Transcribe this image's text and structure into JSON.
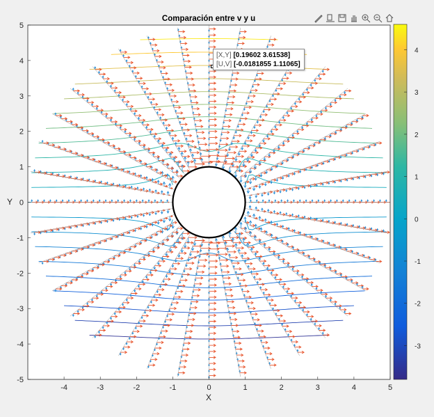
{
  "chart_data": {
    "type": "quiver",
    "title": "Comparación entre v y u",
    "xlabel": "X",
    "ylabel": "Y",
    "xlim": [
      -5,
      5
    ],
    "ylim": [
      -5,
      5
    ],
    "xticks": [
      -4,
      -3,
      -2,
      -1,
      0,
      1,
      2,
      3,
      4,
      5
    ],
    "yticks": [
      -5,
      -4,
      -3,
      -2,
      -1,
      0,
      1,
      2,
      3,
      4,
      5
    ],
    "cylinder_radius": 1,
    "radial_rays": 36,
    "outer_radius": 5,
    "colorbar": {
      "colormap": "parula",
      "ticks": [
        -3,
        -2,
        -1,
        0,
        1,
        2,
        3,
        4
      ],
      "range": [
        -3.8,
        4.6
      ]
    },
    "series": [
      {
        "name": "v",
        "color": "#2b8fd8"
      },
      {
        "name": "u",
        "color": "#e8552d"
      }
    ]
  },
  "datatip": {
    "xy_label": "[X,Y]",
    "xy_value": "[0.19602 3.61538]",
    "uv_label": "[U,V]",
    "uv_value": "[-0.0181855 1.11065]"
  },
  "toolbar": [
    "brush-icon",
    "data-tip-icon",
    "save-icon",
    "pan-icon",
    "zoom-in-icon",
    "zoom-out-icon",
    "home-icon"
  ]
}
